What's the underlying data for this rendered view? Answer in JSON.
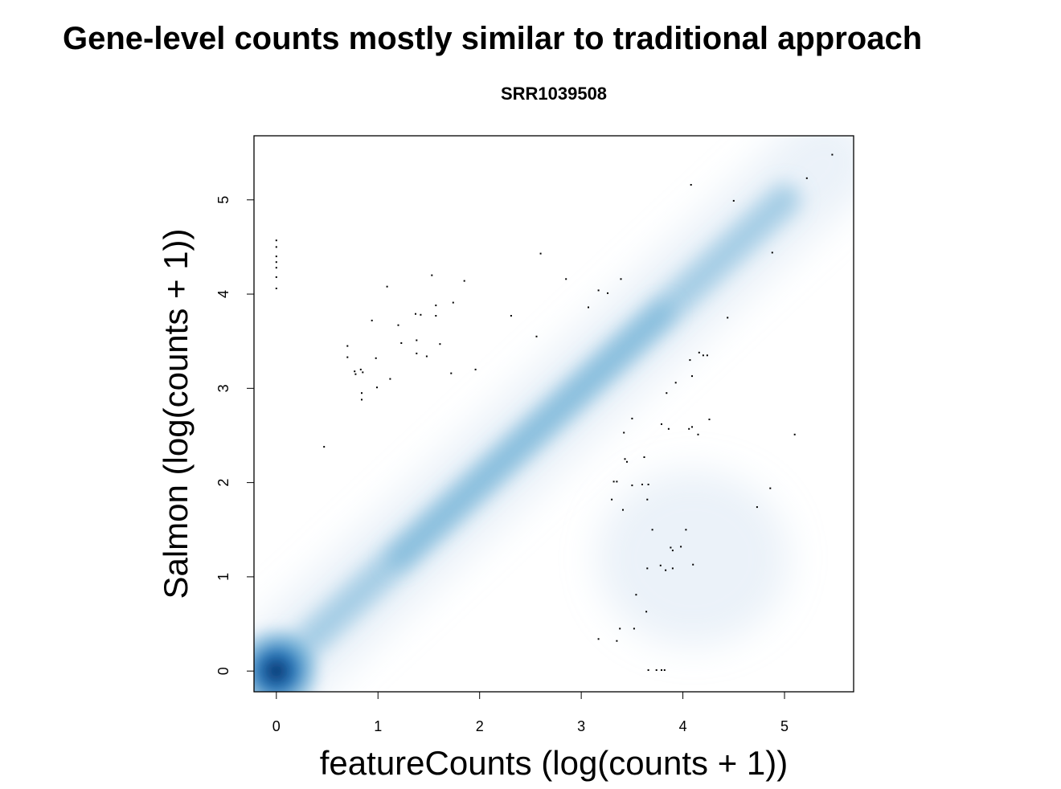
{
  "slide": {
    "title": "Gene-level counts mostly similar to traditional approach"
  },
  "chart_data": {
    "type": "scatter",
    "style": "smoothed-density-scatter",
    "title": "SRR1039508",
    "xlabel": "featureCounts (log(counts + 1))",
    "ylabel": "Salmon (log(counts + 1))",
    "xlim": [
      -0.22,
      5.68
    ],
    "ylim": [
      -0.22,
      5.68
    ],
    "xticks": [
      0,
      1,
      2,
      3,
      4,
      5
    ],
    "yticks": [
      0,
      1,
      2,
      3,
      4,
      5
    ],
    "grid": false,
    "density_color_scale": [
      "#ffffff",
      "#c6dbef",
      "#6baed6",
      "#2171b5",
      "#08306b"
    ],
    "point_color": "#000000",
    "outlier_points": [
      {
        "x": 0.0,
        "y": 4.57
      },
      {
        "x": 0.0,
        "y": 4.5
      },
      {
        "x": 0.0,
        "y": 4.4
      },
      {
        "x": 0.0,
        "y": 4.34
      },
      {
        "x": 0.0,
        "y": 4.28
      },
      {
        "x": 0.0,
        "y": 4.18
      },
      {
        "x": 0.0,
        "y": 4.06
      },
      {
        "x": 0.47,
        "y": 2.38
      },
      {
        "x": 0.7,
        "y": 3.45
      },
      {
        "x": 0.7,
        "y": 3.33
      },
      {
        "x": 0.77,
        "y": 3.18
      },
      {
        "x": 0.78,
        "y": 3.15
      },
      {
        "x": 0.83,
        "y": 3.2
      },
      {
        "x": 0.85,
        "y": 3.17
      },
      {
        "x": 0.84,
        "y": 2.95
      },
      {
        "x": 0.84,
        "y": 2.88
      },
      {
        "x": 0.94,
        "y": 3.72
      },
      {
        "x": 0.98,
        "y": 3.32
      },
      {
        "x": 0.99,
        "y": 3.01
      },
      {
        "x": 1.09,
        "y": 4.08
      },
      {
        "x": 1.12,
        "y": 3.1
      },
      {
        "x": 1.2,
        "y": 3.67
      },
      {
        "x": 1.23,
        "y": 3.48
      },
      {
        "x": 1.37,
        "y": 3.79
      },
      {
        "x": 1.38,
        "y": 3.51
      },
      {
        "x": 1.38,
        "y": 3.37
      },
      {
        "x": 1.42,
        "y": 3.78
      },
      {
        "x": 1.48,
        "y": 3.34
      },
      {
        "x": 1.53,
        "y": 4.2
      },
      {
        "x": 1.57,
        "y": 3.88
      },
      {
        "x": 1.57,
        "y": 3.77
      },
      {
        "x": 1.61,
        "y": 3.47
      },
      {
        "x": 1.72,
        "y": 3.16
      },
      {
        "x": 1.74,
        "y": 3.91
      },
      {
        "x": 1.85,
        "y": 4.14
      },
      {
        "x": 1.96,
        "y": 3.2
      },
      {
        "x": 2.31,
        "y": 3.77
      },
      {
        "x": 2.56,
        "y": 3.55
      },
      {
        "x": 2.6,
        "y": 4.43
      },
      {
        "x": 2.85,
        "y": 4.16
      },
      {
        "x": 3.07,
        "y": 3.86
      },
      {
        "x": 3.17,
        "y": 4.04
      },
      {
        "x": 3.26,
        "y": 4.01
      },
      {
        "x": 3.39,
        "y": 4.16
      },
      {
        "x": 4.08,
        "y": 5.16
      },
      {
        "x": 4.5,
        "y": 4.99
      },
      {
        "x": 4.88,
        "y": 4.44
      },
      {
        "x": 5.22,
        "y": 5.23
      },
      {
        "x": 5.47,
        "y": 5.48
      },
      {
        "x": 4.44,
        "y": 3.75
      },
      {
        "x": 4.16,
        "y": 3.38
      },
      {
        "x": 4.2,
        "y": 3.35
      },
      {
        "x": 4.24,
        "y": 3.35
      },
      {
        "x": 4.07,
        "y": 3.3
      },
      {
        "x": 4.09,
        "y": 3.13
      },
      {
        "x": 3.93,
        "y": 3.06
      },
      {
        "x": 3.84,
        "y": 2.95
      },
      {
        "x": 3.79,
        "y": 2.62
      },
      {
        "x": 3.86,
        "y": 2.57
      },
      {
        "x": 4.06,
        "y": 2.57
      },
      {
        "x": 4.09,
        "y": 2.59
      },
      {
        "x": 4.15,
        "y": 2.51
      },
      {
        "x": 4.26,
        "y": 2.67
      },
      {
        "x": 5.1,
        "y": 2.51
      },
      {
        "x": 3.5,
        "y": 2.68
      },
      {
        "x": 3.42,
        "y": 2.53
      },
      {
        "x": 3.43,
        "y": 2.25
      },
      {
        "x": 3.45,
        "y": 2.22
      },
      {
        "x": 3.62,
        "y": 2.27
      },
      {
        "x": 3.32,
        "y": 2.01
      },
      {
        "x": 3.35,
        "y": 2.01
      },
      {
        "x": 3.5,
        "y": 1.97
      },
      {
        "x": 3.6,
        "y": 1.98
      },
      {
        "x": 3.66,
        "y": 1.98
      },
      {
        "x": 3.3,
        "y": 1.82
      },
      {
        "x": 3.41,
        "y": 1.71
      },
      {
        "x": 3.65,
        "y": 1.82
      },
      {
        "x": 4.86,
        "y": 1.94
      },
      {
        "x": 4.73,
        "y": 1.74
      },
      {
        "x": 3.7,
        "y": 1.5
      },
      {
        "x": 4.03,
        "y": 1.5
      },
      {
        "x": 3.88,
        "y": 1.31
      },
      {
        "x": 3.9,
        "y": 1.28
      },
      {
        "x": 3.98,
        "y": 1.32
      },
      {
        "x": 4.1,
        "y": 1.13
      },
      {
        "x": 3.65,
        "y": 1.09
      },
      {
        "x": 3.78,
        "y": 1.12
      },
      {
        "x": 3.83,
        "y": 1.07
      },
      {
        "x": 3.9,
        "y": 1.09
      },
      {
        "x": 3.54,
        "y": 0.81
      },
      {
        "x": 3.64,
        "y": 0.63
      },
      {
        "x": 3.38,
        "y": 0.45
      },
      {
        "x": 3.52,
        "y": 0.45
      },
      {
        "x": 3.17,
        "y": 0.34
      },
      {
        "x": 3.35,
        "y": 0.32
      },
      {
        "x": 3.66,
        "y": 0.01
      },
      {
        "x": 3.74,
        "y": 0.01
      },
      {
        "x": 3.79,
        "y": 0.01
      },
      {
        "x": 3.82,
        "y": 0.01
      }
    ]
  }
}
